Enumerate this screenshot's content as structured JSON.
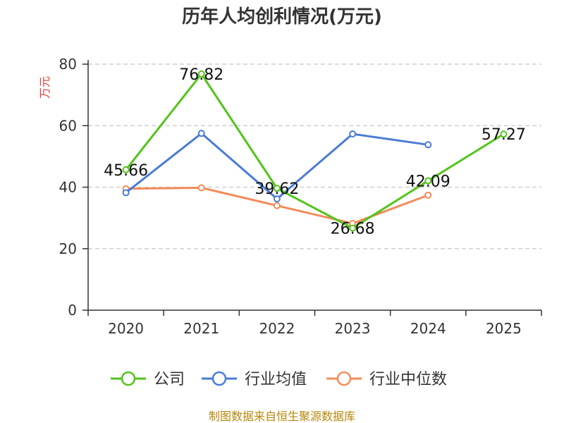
{
  "chart_data": {
    "type": "line",
    "title": "历年人均创利情况(万元)",
    "ylabel": "万元",
    "xlabel": "",
    "ylim": [
      0,
      80
    ],
    "yticks": [
      0,
      20,
      40,
      60,
      80
    ],
    "categories": [
      "2020",
      "2021",
      "2022",
      "2023",
      "2024",
      "2025"
    ],
    "series": [
      {
        "name": "公司",
        "color": "#52c41a",
        "values": [
          45.66,
          76.82,
          39.62,
          26.68,
          42.09,
          57.27
        ],
        "labels": [
          "45.66",
          "76.82",
          "39.62",
          "26.68",
          "42.09",
          "57.27"
        ]
      },
      {
        "name": "行业均值",
        "color": "#4a7bd6",
        "values": [
          38.2,
          57.5,
          36.2,
          57.3,
          53.8,
          null
        ]
      },
      {
        "name": "行业中位数",
        "color": "#f28c5a",
        "values": [
          39.5,
          39.8,
          34.0,
          28.2,
          37.4,
          null
        ]
      }
    ],
    "grid": true,
    "legend": "bottom"
  },
  "source": "制图数据来自恒生聚源数据库"
}
